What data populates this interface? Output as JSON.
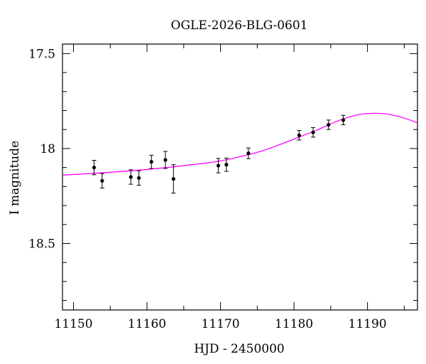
{
  "chart_data": {
    "type": "scatter",
    "title": "OGLE-2026-BLG-0601",
    "xlabel": "HJD - 2450000",
    "ylabel": "I magnitude",
    "xlim": [
      11148.5,
      11196.8
    ],
    "ylim": [
      18.85,
      17.45
    ],
    "y_inverted": true,
    "x_major_ticks": [
      11150,
      11160,
      11170,
      11180,
      11190
    ],
    "x_minor_ticks": [
      11155,
      11165,
      11175,
      11185,
      11195
    ],
    "x_tick_labels": [
      "11150",
      "11160",
      "11170",
      "11180",
      "11190"
    ],
    "y_major_ticks": [
      17.5,
      18,
      18.5
    ],
    "y_minor_ticks": [
      17.6,
      17.7,
      17.8,
      17.9,
      18.1,
      18.2,
      18.3,
      18.4,
      18.6,
      18.7,
      18.8
    ],
    "y_tick_labels": [
      "17.5",
      "18",
      "18.5"
    ],
    "grid": false,
    "legend": "none",
    "series": [
      {
        "kind": "points",
        "color": "#000000",
        "x": [
          11152.8,
          11153.9,
          11157.8,
          11158.9,
          11160.6,
          11162.5,
          11163.6,
          11169.7,
          11170.8,
          11173.8,
          11180.7,
          11182.6,
          11184.7,
          11186.7
        ],
        "y": [
          18.1,
          18.17,
          18.15,
          18.155,
          18.07,
          18.06,
          18.16,
          18.09,
          18.085,
          18.025,
          17.93,
          17.915,
          17.875,
          17.85
        ],
        "yerr": [
          0.038,
          0.038,
          0.038,
          0.038,
          0.035,
          0.045,
          0.075,
          0.038,
          0.035,
          0.028,
          0.025,
          0.025,
          0.025,
          0.025
        ]
      },
      {
        "kind": "model",
        "color": "#ff00ff",
        "x": [
          11148.5,
          11155,
          11160,
          11165,
          11170,
          11175,
          11178,
          11181,
          11183,
          11185,
          11187,
          11189,
          11190.5,
          11191.5,
          11193,
          11195,
          11196.8
        ],
        "y": [
          18.14,
          18.125,
          18.11,
          18.09,
          18.065,
          18.02,
          17.98,
          17.935,
          17.905,
          17.87,
          17.84,
          17.82,
          17.815,
          17.815,
          17.82,
          17.84,
          17.865
        ]
      }
    ]
  }
}
